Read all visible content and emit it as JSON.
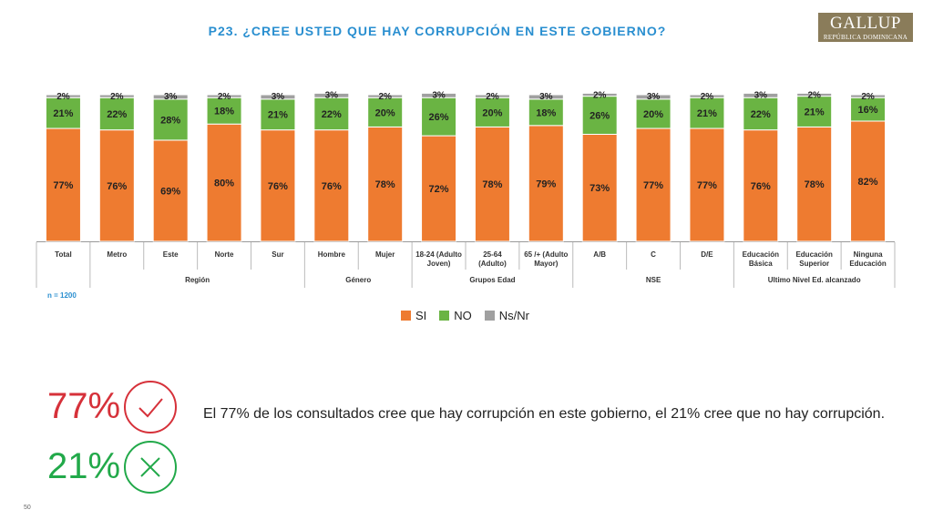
{
  "title": "P23.   ¿CREE USTED QUE HAY CORRUPCIÓN EN ESTE GOBIERNO?",
  "logo": {
    "name": "GALLUP",
    "sub": "REPÚBLICA DOMINICANA"
  },
  "note": "n = 1200",
  "legend": [
    {
      "label": "SI",
      "color": "#ee7b30"
    },
    {
      "label": "NO",
      "color": "#6ab443"
    },
    {
      "label": "Ns/Nr",
      "color": "#a0a0a0"
    }
  ],
  "chart_data": {
    "type": "bar",
    "stacked": true,
    "ylim": [
      0,
      100
    ],
    "categories": [
      [
        "Total"
      ],
      [
        "Metro"
      ],
      [
        "Este"
      ],
      [
        "Norte"
      ],
      [
        "Sur"
      ],
      [
        "Hombre"
      ],
      [
        "Mujer"
      ],
      [
        "18-24 (Adulto",
        "Joven)"
      ],
      [
        "25-64",
        "(Adulto)"
      ],
      [
        "65 /+ (Adulto",
        "Mayor)"
      ],
      [
        "A/B"
      ],
      [
        "C"
      ],
      [
        "D/E"
      ],
      [
        "Educación",
        "Básica"
      ],
      [
        "Educación",
        "Superior"
      ],
      [
        "Ninguna",
        "Educación"
      ]
    ],
    "groups": [
      {
        "label": "",
        "start": 0,
        "end": 0
      },
      {
        "label": "Región",
        "start": 1,
        "end": 4
      },
      {
        "label": "Género",
        "start": 5,
        "end": 6
      },
      {
        "label": "Grupos Edad",
        "start": 7,
        "end": 9
      },
      {
        "label": "NSE",
        "start": 10,
        "end": 12
      },
      {
        "label": "Ultimo Nivel Ed. alcanzado",
        "start": 13,
        "end": 15
      }
    ],
    "series": [
      {
        "name": "SI",
        "color": "#ee7b30",
        "values": [
          77,
          76,
          69,
          80,
          76,
          76,
          78,
          72,
          78,
          79,
          73,
          77,
          77,
          76,
          78,
          82
        ]
      },
      {
        "name": "NO",
        "color": "#6ab443",
        "values": [
          21,
          22,
          28,
          18,
          21,
          22,
          20,
          26,
          20,
          18,
          26,
          20,
          21,
          22,
          21,
          16
        ]
      },
      {
        "name": "Ns/Nr",
        "color": "#a0a0a0",
        "values": [
          2,
          2,
          3,
          2,
          3,
          3,
          2,
          3,
          2,
          3,
          2,
          3,
          2,
          3,
          2,
          2
        ]
      }
    ]
  },
  "stats": {
    "yes_pct": "77%",
    "no_pct": "21%"
  },
  "summary": "El 77% de los consultados cree que hay corrupción en este gobierno, el 21% cree que no hay corrupción.",
  "page_number": "50",
  "icons": {
    "yes": "check-icon",
    "no": "x-icon"
  }
}
